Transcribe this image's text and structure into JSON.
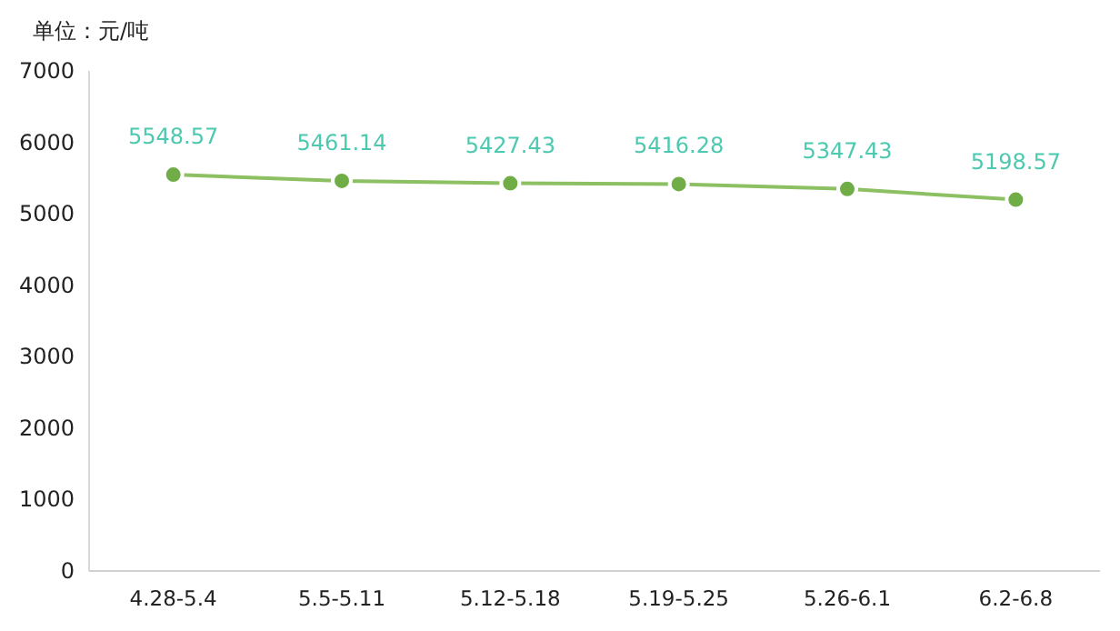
{
  "chart_data": {
    "type": "line",
    "ylabel": "单位：元/吨",
    "categories": [
      "4.28-5.4",
      "5.5-5.11",
      "5.12-5.18",
      "5.19-5.25",
      "5.26-6.1",
      "6.2-6.8"
    ],
    "series": [
      {
        "color": "#70ad47",
        "values": [
          5548.57,
          5461.14,
          5427.43,
          5416.28,
          5347.43,
          5198.57
        ]
      }
    ],
    "ylim": [
      0,
      7000
    ],
    "yticks": [
      0,
      1000,
      2000,
      3000,
      4000,
      5000,
      6000,
      7000
    ],
    "data_labels": true,
    "marker": "circle",
    "line_style": "solid",
    "grid": false
  }
}
